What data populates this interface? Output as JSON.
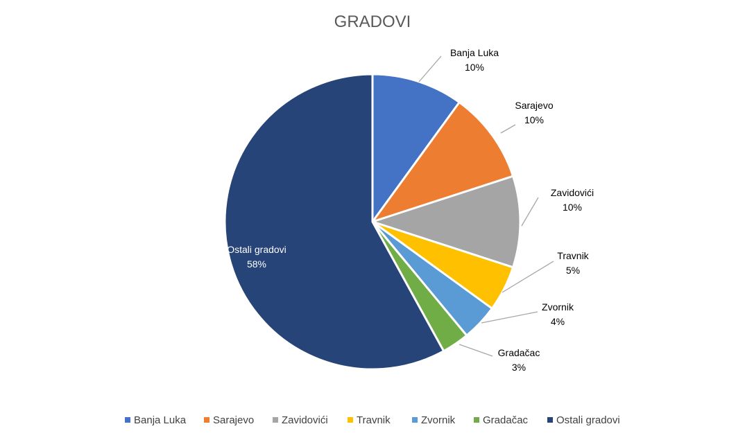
{
  "chart_data": {
    "type": "pie",
    "title": "GRADOVI",
    "slices": [
      {
        "label": "Banja Luka",
        "value": 10,
        "value_label": "10%",
        "color": "#4472C4"
      },
      {
        "label": "Sarajevo",
        "value": 10,
        "value_label": "10%",
        "color": "#ED7D31"
      },
      {
        "label": "Zavidovići",
        "value": 10,
        "value_label": "10%",
        "color": "#A5A5A5"
      },
      {
        "label": "Travnik",
        "value": 5,
        "value_label": "5%",
        "color": "#FFC000"
      },
      {
        "label": "Zvornik",
        "value": 4,
        "value_label": "4%",
        "color": "#5B9BD5"
      },
      {
        "label": "Gradačac",
        "value": 3,
        "value_label": "3%",
        "color": "#70AD47"
      },
      {
        "label": "Ostali gradovi",
        "value": 58,
        "value_label": "58%",
        "color": "#264478"
      }
    ],
    "legend_position": "bottom",
    "start_angle": "12 o'clock, clockwise"
  }
}
